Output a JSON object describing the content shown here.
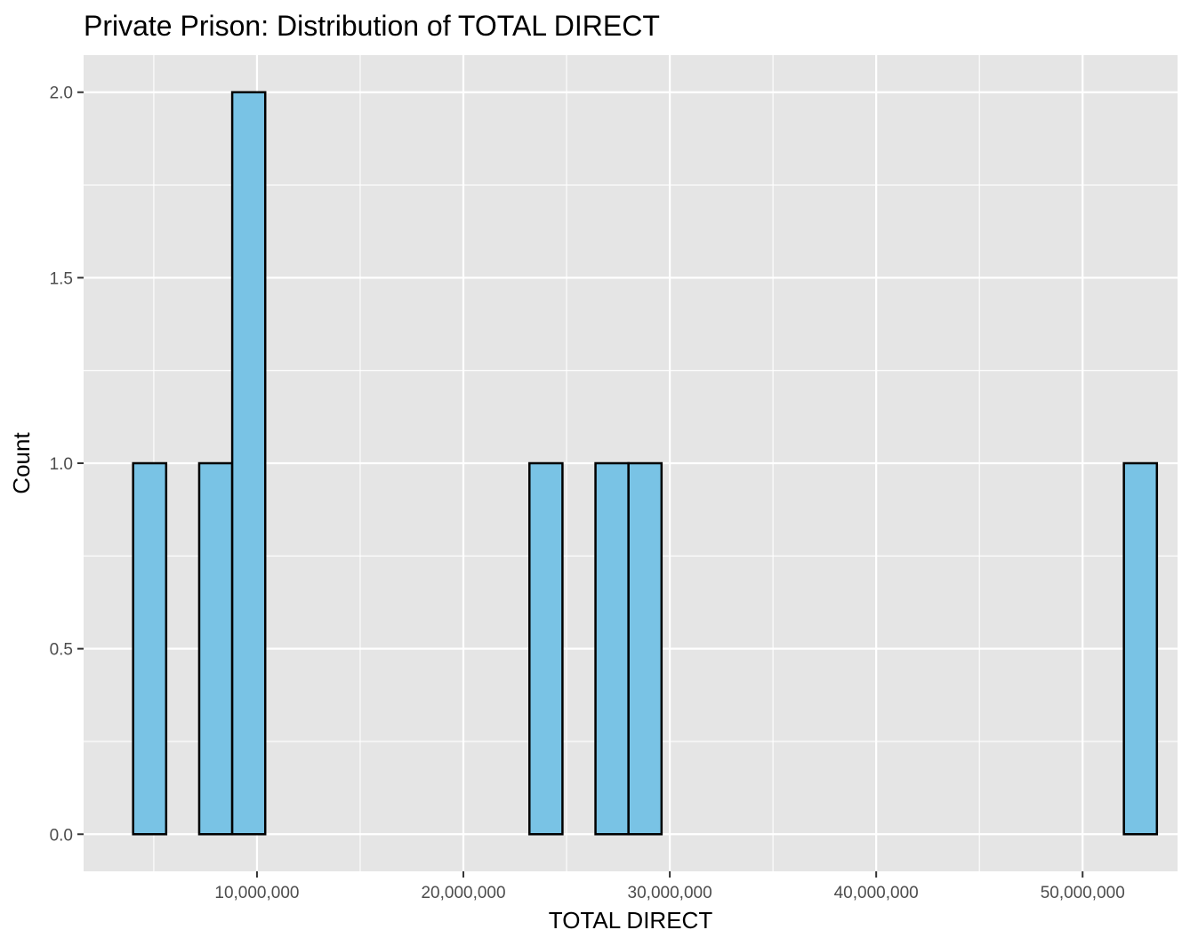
{
  "chart_data": {
    "type": "bar",
    "title": "Private Prison: Distribution of TOTAL DIRECT",
    "xlabel": "TOTAL DIRECT",
    "ylabel": "Count",
    "xlim": [
      1600000,
      54600000
    ],
    "ylim": [
      -0.1,
      2.1
    ],
    "x_ticks": [
      {
        "value": 10000000,
        "label": "10,000,000"
      },
      {
        "value": 20000000,
        "label": "20,000,000"
      },
      {
        "value": 30000000,
        "label": "30,000,000"
      },
      {
        "value": 40000000,
        "label": "40,000,000"
      },
      {
        "value": 50000000,
        "label": "50,000,000"
      }
    ],
    "y_ticks": [
      {
        "value": 0.0,
        "label": "0.0"
      },
      {
        "value": 0.5,
        "label": "0.5"
      },
      {
        "value": 1.0,
        "label": "1.0"
      },
      {
        "value": 1.5,
        "label": "1.5"
      },
      {
        "value": 2.0,
        "label": "2.0"
      }
    ],
    "bin_start": 4000000,
    "bin_width": 1600000,
    "counts": [
      1,
      0,
      1,
      2,
      0,
      0,
      0,
      0,
      0,
      0,
      0,
      0,
      1,
      0,
      1,
      1,
      0,
      0,
      0,
      0,
      0,
      0,
      0,
      0,
      0,
      0,
      0,
      0,
      0,
      0,
      1
    ],
    "grid": true,
    "colors": {
      "panel": "#e5e5e5",
      "grid": "#ffffff",
      "bar_fill": "#79c3e5",
      "bar_stroke": "#000000"
    }
  }
}
